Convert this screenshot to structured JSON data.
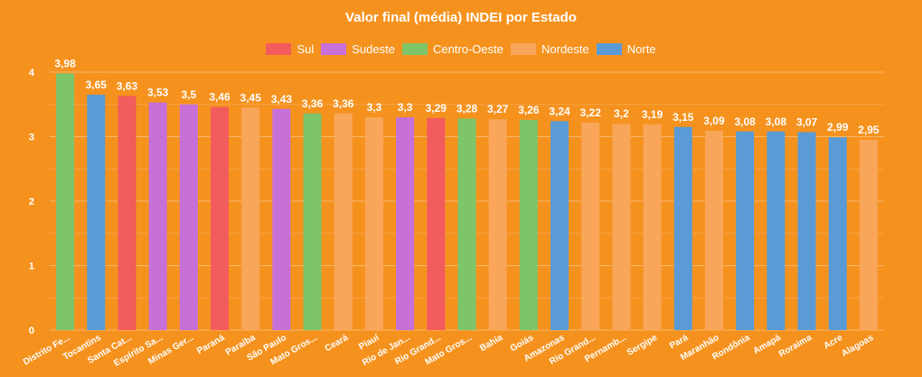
{
  "chart_data": {
    "type": "bar",
    "title": "Valor final (média) INDEI por Estado",
    "xlabel": "",
    "ylabel": "",
    "ylim": [
      0,
      4
    ],
    "yticks": [
      "0",
      "1",
      "2",
      "3",
      "4"
    ],
    "legend_position": "top-center",
    "grid": true,
    "legend": [
      {
        "name": "Sul",
        "color": "#f25c5c"
      },
      {
        "name": "Sudeste",
        "color": "#c670d8"
      },
      {
        "name": "Centro-Oeste",
        "color": "#7ec468"
      },
      {
        "name": "Nordeste",
        "color": "#f9a65a"
      },
      {
        "name": "Norte",
        "color": "#5a9bd5"
      }
    ],
    "categories": [
      "Distrito Fe...",
      "Tocantins",
      "Santa Cat...",
      "Espírito Sa...",
      "Minas Ger...",
      "Paraná",
      "Paraíba",
      "São Paulo",
      "Mato Gros...",
      "Ceará",
      "Piauí",
      "Rio de Jan...",
      "Rio Grand...",
      "Mato Gros...",
      "Bahia",
      "Goiás",
      "Amazonas",
      "Rio Grand...",
      "Pernamb...",
      "Sergipe",
      "Pará",
      "Maranhão",
      "Rondônia",
      "Amapá",
      "Roraima",
      "Acre",
      "Alagoas"
    ],
    "values": [
      3.98,
      3.65,
      3.63,
      3.53,
      3.5,
      3.46,
      3.45,
      3.43,
      3.36,
      3.36,
      3.3,
      3.3,
      3.29,
      3.28,
      3.27,
      3.26,
      3.24,
      3.22,
      3.2,
      3.19,
      3.15,
      3.09,
      3.08,
      3.08,
      3.07,
      2.99,
      2.95
    ],
    "value_labels": [
      "3,98",
      "3,65",
      "3,63",
      "3,53",
      "3,5",
      "3,46",
      "3,45",
      "3,43",
      "3,36",
      "3,36",
      "3,3",
      "3,3",
      "3,29",
      "3,28",
      "3,27",
      "3,26",
      "3,24",
      "3,22",
      "3,2",
      "3,19",
      "3,15",
      "3,09",
      "3,08",
      "3,08",
      "3,07",
      "2,99",
      "2,95"
    ],
    "regions": [
      "Centro-Oeste",
      "Norte",
      "Sul",
      "Sudeste",
      "Sudeste",
      "Sul",
      "Nordeste",
      "Sudeste",
      "Centro-Oeste",
      "Nordeste",
      "Nordeste",
      "Sudeste",
      "Sul",
      "Centro-Oeste",
      "Nordeste",
      "Centro-Oeste",
      "Norte",
      "Nordeste",
      "Nordeste",
      "Nordeste",
      "Norte",
      "Nordeste",
      "Norte",
      "Norte",
      "Norte",
      "Norte",
      "Nordeste"
    ]
  }
}
